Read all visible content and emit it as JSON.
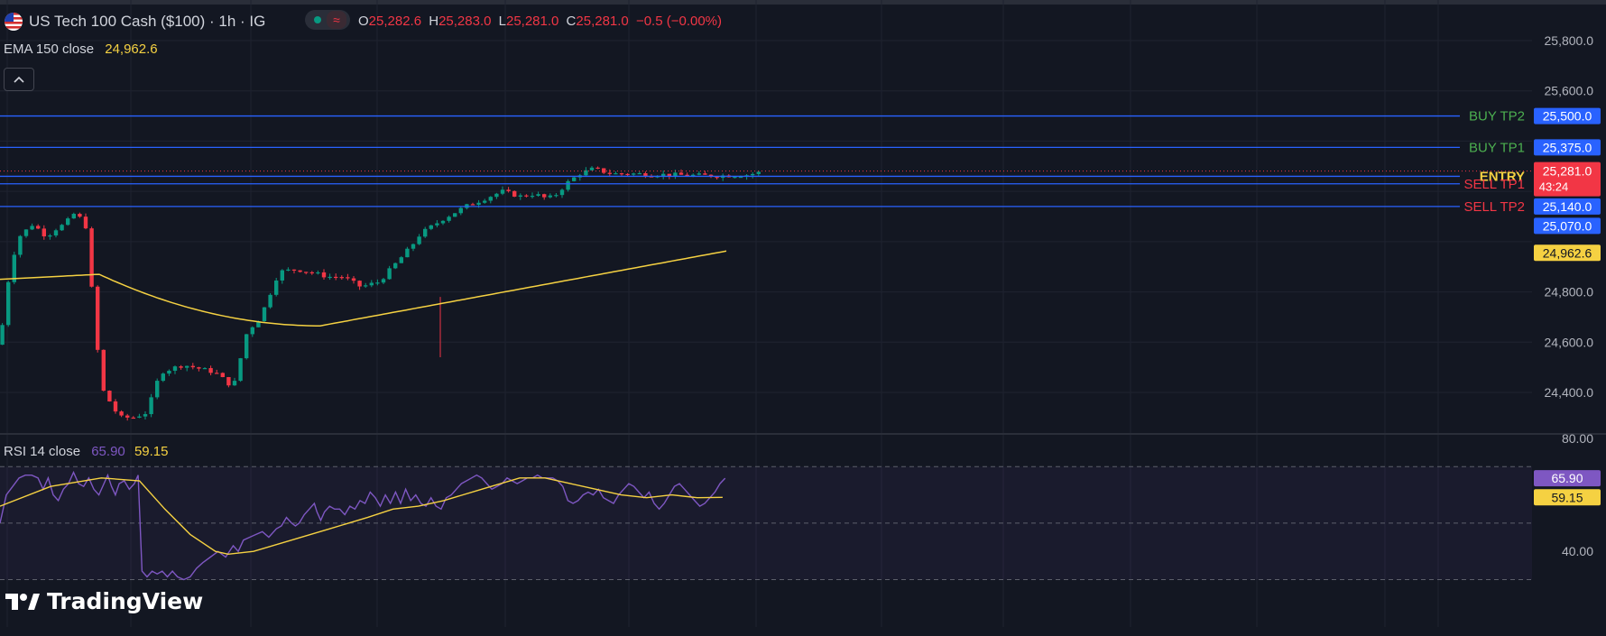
{
  "header": {
    "symbol": "US Tech 100 Cash ($100) · 1h · IG",
    "o_label": "O",
    "o_value": "25,282.6",
    "h_label": "H",
    "h_value": "25,283.0",
    "l_label": "L",
    "l_value": "25,281.0",
    "c_label": "C",
    "c_value": "25,281.0",
    "change": "−0.5 (−0.00%)"
  },
  "ema_legend": {
    "label": "EMA 150 close",
    "value": "24,962.6"
  },
  "rsi_legend": {
    "label": "RSI 14 close",
    "value": "65.90",
    "signal": "59.15"
  },
  "brand": {
    "name": "TradingView"
  },
  "colors": {
    "background": "#131722",
    "up": "#089981",
    "down": "#f23645",
    "ema": "#f5d142",
    "rsi": "#7e57c2",
    "rsi_ma": "#f5d142",
    "level_line": "#2962ff",
    "buy_text": "#4caf50",
    "sell_text": "#f23645",
    "entry_text": "#f5d142"
  },
  "chart_data": [
    {
      "type": "candlestick",
      "title": "US Tech 100 Cash ($100) · 1h · IG",
      "ylim": [
        24300,
        25900
      ],
      "y_ticks": [
        "25,800.0",
        "25,600.0",
        "24,800.0",
        "24,600.0",
        "24,400.0"
      ],
      "grid": true,
      "last_price": {
        "value": 25281.0,
        "label": "25,281.0",
        "countdown": "43:24"
      },
      "levels": [
        {
          "name": "BUY TP2",
          "value": 25500.0,
          "label": "25,500.0",
          "kind": "buy"
        },
        {
          "name": "BUY TP1",
          "value": 25375.0,
          "label": "25,375.0",
          "kind": "buy"
        },
        {
          "name": "ENTRY",
          "value": 25260.0,
          "label": "",
          "kind": "entry"
        },
        {
          "name": "SELL TP1",
          "value": 25230.0,
          "label": "25,230.0",
          "kind": "sell"
        },
        {
          "name": "SELL TP2",
          "value": 25140.0,
          "label": "25,140.0",
          "kind": "sell"
        }
      ],
      "extra_price_labels": [
        {
          "value": 25070.0,
          "label": "25,070.0"
        }
      ],
      "ema": {
        "name": "EMA 150 close",
        "last_label": "24,962.6",
        "start": 24850,
        "dip": 24665,
        "end": 24962.6
      },
      "candle_count": 128,
      "candle_anchors": [
        [
          0,
          24590
        ],
        [
          3,
          24680
        ],
        [
          6,
          24900
        ],
        [
          10,
          25020
        ],
        [
          16,
          25070
        ],
        [
          22,
          25020
        ],
        [
          26,
          25050
        ],
        [
          30,
          25070
        ],
        [
          34,
          25110
        ],
        [
          39,
          25080
        ],
        [
          46,
          24420
        ],
        [
          54,
          24300
        ],
        [
          60,
          24300
        ],
        [
          66,
          24320
        ],
        [
          72,
          24480
        ],
        [
          82,
          24510
        ],
        [
          96,
          24480
        ],
        [
          104,
          24420
        ],
        [
          110,
          24640
        ],
        [
          116,
          24700
        ],
        [
          124,
          24880
        ],
        [
          132,
          24890
        ],
        [
          146,
          24860
        ],
        [
          152,
          24860
        ],
        [
          160,
          24820
        ],
        [
          168,
          24840
        ],
        [
          174,
          24900
        ],
        [
          182,
          24980
        ],
        [
          186,
          25030
        ],
        [
          196,
          25090
        ],
        [
          206,
          25140
        ],
        [
          214,
          25170
        ],
        [
          222,
          25200
        ],
        [
          230,
          25180
        ],
        [
          236,
          25190
        ],
        [
          242,
          25170
        ],
        [
          246,
          25190
        ],
        [
          250,
          25230
        ],
        [
          256,
          25270
        ],
        [
          262,
          25290
        ],
        [
          270,
          25270
        ],
        [
          280,
          25270
        ],
        [
          300,
          25265
        ],
        [
          316,
          25262
        ],
        [
          330,
          25266
        ],
        [
          340,
          25285
        ],
        [
          346,
          25300
        ]
      ]
    },
    {
      "type": "line",
      "title": "RSI 14 close",
      "ylim": [
        30,
        80
      ],
      "y_ticks": [
        "80.00",
        "40.00"
      ],
      "bands": [
        70,
        50,
        30
      ],
      "series": [
        {
          "name": "RSI 14 close",
          "last_label": "65.90",
          "points": [
            [
              0,
              50
            ],
            [
              5,
              60
            ],
            [
              10,
              63
            ],
            [
              15,
              66
            ],
            [
              20,
              67
            ],
            [
              25,
              67
            ],
            [
              30,
              66
            ],
            [
              34,
              62
            ],
            [
              38,
              66
            ],
            [
              42,
              60
            ],
            [
              46,
              58
            ],
            [
              50,
              62
            ],
            [
              54,
              64
            ],
            [
              58,
              68
            ],
            [
              62,
              64
            ],
            [
              66,
              63
            ],
            [
              70,
              66
            ],
            [
              74,
              62
            ],
            [
              78,
              60
            ],
            [
              82,
              64
            ],
            [
              85,
              67
            ],
            [
              88,
              63
            ],
            [
              91,
              60
            ],
            [
              94,
              64
            ],
            [
              98,
              65
            ],
            [
              102,
              62
            ],
            [
              106,
              64
            ],
            [
              109,
              67
            ],
            [
              112,
              33
            ],
            [
              116,
              31
            ],
            [
              120,
              33
            ],
            [
              124,
              32
            ],
            [
              128,
              33
            ],
            [
              132,
              31
            ],
            [
              136,
              33
            ],
            [
              140,
              31
            ],
            [
              145,
              30
            ],
            [
              150,
              31
            ],
            [
              155,
              34
            ],
            [
              160,
              36
            ],
            [
              166,
              38
            ],
            [
              172,
              40
            ],
            [
              178,
              38
            ],
            [
              184,
              42
            ],
            [
              188,
              40
            ],
            [
              192,
              44
            ],
            [
              197,
              45
            ],
            [
              202,
              46
            ],
            [
              207,
              47
            ],
            [
              212,
              45
            ],
            [
              218,
              48
            ],
            [
              222,
              49
            ],
            [
              226,
              52
            ],
            [
              230,
              50
            ],
            [
              233,
              49
            ],
            [
              236,
              50
            ],
            [
              240,
              53
            ],
            [
              244,
              55
            ],
            [
              248,
              57
            ],
            [
              250,
              54
            ],
            [
              253,
              51
            ],
            [
              256,
              54
            ],
            [
              260,
              56
            ],
            [
              264,
              55
            ],
            [
              268,
              55
            ],
            [
              272,
              53
            ],
            [
              276,
              56
            ],
            [
              280,
              55
            ],
            [
              284,
              58
            ],
            [
              288,
              57
            ],
            [
              292,
              61
            ],
            [
              296,
              59
            ],
            [
              300,
              56
            ],
            [
              304,
              60
            ],
            [
              308,
              57
            ],
            [
              312,
              61
            ],
            [
              316,
              57
            ],
            [
              320,
              62
            ],
            [
              324,
              58
            ],
            [
              328,
              60
            ],
            [
              332,
              57
            ],
            [
              336,
              56
            ],
            [
              340,
              59
            ],
            [
              344,
              56
            ],
            [
              348,
              55
            ],
            [
              352,
              59
            ],
            [
              356,
              60
            ],
            [
              360,
              62
            ],
            [
              364,
              64
            ],
            [
              368,
              65
            ],
            [
              372,
              66
            ],
            [
              376,
              67
            ],
            [
              380,
              66
            ],
            [
              384,
              64
            ],
            [
              388,
              62
            ],
            [
              392,
              63
            ],
            [
              396,
              64
            ],
            [
              400,
              66
            ],
            [
              404,
              65
            ],
            [
              408,
              64
            ],
            [
              412,
              65
            ],
            [
              416,
              66
            ],
            [
              420,
              66
            ],
            [
              424,
              67
            ],
            [
              428,
              66
            ],
            [
              432,
              66
            ],
            [
              436,
              66
            ],
            [
              440,
              65
            ],
            [
              444,
              63
            ],
            [
              448,
              58
            ],
            [
              452,
              57
            ],
            [
              456,
              58
            ],
            [
              460,
              60
            ],
            [
              464,
              61
            ],
            [
              468,
              60
            ],
            [
              472,
              62
            ],
            [
              476,
              59
            ],
            [
              480,
              58
            ],
            [
              484,
              57
            ],
            [
              488,
              60
            ],
            [
              492,
              62
            ],
            [
              496,
              64
            ],
            [
              500,
              63
            ],
            [
              504,
              61
            ],
            [
              508,
              59
            ],
            [
              512,
              61
            ],
            [
              516,
              57
            ],
            [
              520,
              55
            ],
            [
              524,
              57
            ],
            [
              528,
              60
            ],
            [
              532,
              63
            ],
            [
              536,
              64
            ],
            [
              540,
              62
            ],
            [
              544,
              60
            ],
            [
              548,
              58
            ],
            [
              552,
              56
            ],
            [
              556,
              57
            ],
            [
              560,
              59
            ],
            [
              564,
              61
            ],
            [
              568,
              64
            ],
            [
              572,
              65.9
            ]
          ]
        },
        {
          "name": "RSI MA",
          "last_label": "59.15",
          "points": [
            [
              0,
              56
            ],
            [
              40,
              63
            ],
            [
              80,
              66
            ],
            [
              110,
              65
            ],
            [
              130,
              55
            ],
            [
              150,
              46
            ],
            [
              170,
              40
            ],
            [
              180,
              39
            ],
            [
              200,
              40
            ],
            [
              230,
              44
            ],
            [
              260,
              48
            ],
            [
              290,
              52
            ],
            [
              310,
              55
            ],
            [
              330,
              56
            ],
            [
              350,
              58
            ],
            [
              380,
              62
            ],
            [
              410,
              66
            ],
            [
              430,
              66
            ],
            [
              450,
              64
            ],
            [
              470,
              62
            ],
            [
              490,
              60
            ],
            [
              510,
              59
            ],
            [
              530,
              60
            ],
            [
              550,
              59
            ],
            [
              570,
              59.15
            ]
          ]
        }
      ]
    }
  ]
}
